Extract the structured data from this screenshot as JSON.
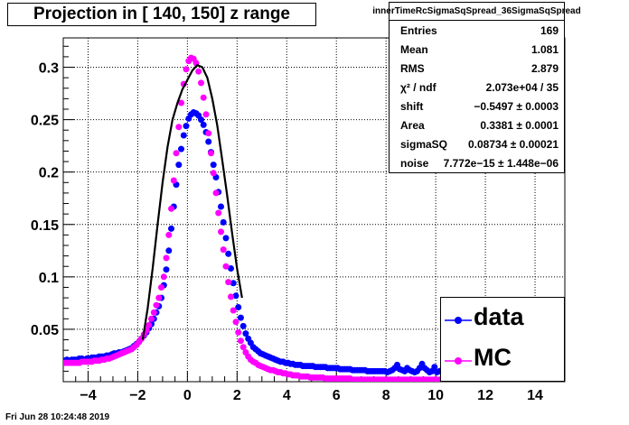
{
  "title": "Projection in [ 140, 150] z range",
  "timestamp": "Fri Jun 28 10:24:48 2019",
  "stats": {
    "name": "innerTimeRcSigmaSqSpread_36SigmaSqSpread",
    "rows": [
      {
        "label": "Entries",
        "value": "169"
      },
      {
        "label": "Mean",
        "value": "1.081"
      },
      {
        "label": "RMS",
        "value": "2.879"
      },
      {
        "label": "χ² / ndf",
        "value": "2.073e+04 / 35"
      },
      {
        "label": "shift",
        "value": "−0.5497 ± 0.0003"
      },
      {
        "label": "Area",
        "value": "0.3381 ± 0.0001"
      },
      {
        "label": "sigmaSQ",
        "value": "0.08734 ± 0.00021"
      },
      {
        "label": "noise",
        "value": "7.772e−15 ± 1.448e−06"
      }
    ]
  },
  "legend": [
    {
      "label": "data",
      "color": "#0000ff"
    },
    {
      "label": "MC",
      "color": "#ff00ff"
    }
  ],
  "chart_data": {
    "type": "scatter",
    "xlim": [
      -5,
      15.2
    ],
    "ylim": [
      0,
      0.328
    ],
    "xticks": [
      -4,
      -2,
      0,
      2,
      4,
      6,
      8,
      10,
      12,
      14
    ],
    "xtick_labels": [
      "−4",
      "−2",
      "0",
      "2",
      "4",
      "6",
      "8",
      "10",
      "12",
      "14"
    ],
    "yticks": [
      0.05,
      0.1,
      0.15,
      0.2,
      0.25,
      0.3
    ],
    "ytick_labels": [
      "0.05",
      "0.1",
      "0.15",
      "0.2",
      "0.25",
      "0.3"
    ],
    "grid": true,
    "legend_position": "bottom-right",
    "series": [
      {
        "name": "data",
        "color": "#0000ff",
        "marker": "circle",
        "x_start": -4.95,
        "x_step": 0.1,
        "values": [
          0.02,
          0.021,
          0.02,
          0.021,
          0.021,
          0.021,
          0.022,
          0.022,
          0.021,
          0.022,
          0.022,
          0.023,
          0.023,
          0.023,
          0.024,
          0.024,
          0.024,
          0.025,
          0.025,
          0.026,
          0.027,
          0.027,
          0.028,
          0.028,
          0.029,
          0.03,
          0.031,
          0.032,
          0.034,
          0.036,
          0.038,
          0.041,
          0.044,
          0.047,
          0.051,
          0.055,
          0.06,
          0.066,
          0.072,
          0.08,
          0.092,
          0.107,
          0.125,
          0.146,
          0.167,
          0.188,
          0.207,
          0.222,
          0.235,
          0.244,
          0.251,
          0.255,
          0.257,
          0.256,
          0.254,
          0.25,
          0.245,
          0.238,
          0.229,
          0.219,
          0.207,
          0.195,
          0.181,
          0.167,
          0.152,
          0.137,
          0.122,
          0.108,
          0.094,
          0.082,
          0.071,
          0.061,
          0.053,
          0.046,
          0.041,
          0.037,
          0.033,
          0.031,
          0.029,
          0.027,
          0.026,
          0.025,
          0.024,
          0.023,
          0.022,
          0.021,
          0.02,
          0.019,
          0.019,
          0.018,
          0.018,
          0.017,
          0.017,
          0.016,
          0.016,
          0.016,
          0.015,
          0.015,
          0.015,
          0.015,
          0.015,
          0.014,
          0.014,
          0.014,
          0.014,
          0.014,
          0.013,
          0.013,
          0.013,
          0.013,
          0.013,
          0.012,
          0.012,
          0.012,
          0.012,
          0.012,
          0.011,
          0.011,
          0.011,
          0.011,
          0.011,
          0.011,
          0.01,
          0.01,
          0.01,
          0.01,
          0.01,
          0.01,
          0.01,
          0.01,
          0.009,
          0.01,
          0.011,
          0.013,
          0.016,
          0.012,
          0.011,
          0.01,
          0.013,
          0.011,
          0.01,
          0.009,
          0.01,
          0.013,
          0.017,
          0.013,
          0.011,
          0.009,
          0.01,
          0.014,
          0.009,
          0.01,
          0.011,
          0.012,
          0.014,
          0.011,
          0.009,
          0.01,
          0.009,
          0.01,
          0.008,
          0.009,
          0.01,
          0.009,
          0.008,
          0.009
        ]
      },
      {
        "name": "MC",
        "color": "#ff00ff",
        "marker": "circle",
        "x_start": -4.95,
        "x_step": 0.1,
        "values": [
          0.018,
          0.018,
          0.018,
          0.018,
          0.018,
          0.018,
          0.018,
          0.019,
          0.019,
          0.019,
          0.019,
          0.019,
          0.02,
          0.02,
          0.02,
          0.021,
          0.021,
          0.022,
          0.022,
          0.023,
          0.024,
          0.025,
          0.026,
          0.027,
          0.028,
          0.029,
          0.03,
          0.031,
          0.033,
          0.035,
          0.038,
          0.041,
          0.045,
          0.049,
          0.054,
          0.06,
          0.066,
          0.073,
          0.08,
          0.09,
          0.1,
          0.118,
          0.14,
          0.165,
          0.192,
          0.218,
          0.243,
          0.266,
          0.284,
          0.298,
          0.306,
          0.309,
          0.308,
          0.304,
          0.296,
          0.285,
          0.271,
          0.255,
          0.237,
          0.218,
          0.199,
          0.18,
          0.161,
          0.143,
          0.126,
          0.11,
          0.095,
          0.081,
          0.068,
          0.057,
          0.047,
          0.039,
          0.033,
          0.028,
          0.024,
          0.021,
          0.019,
          0.018,
          0.016,
          0.015,
          0.014,
          0.013,
          0.012,
          0.011,
          0.011,
          0.01,
          0.009,
          0.009,
          0.008,
          0.008,
          0.007,
          0.007,
          0.006,
          0.006,
          0.006,
          0.005,
          0.005,
          0.005,
          0.005,
          0.004,
          0.004,
          0.004,
          0.004,
          0.004,
          0.004,
          0.003,
          0.003,
          0.003,
          0.003,
          0.003,
          0.003,
          0.003,
          0.003,
          0.003,
          0.003,
          0.003,
          0.002,
          0.002,
          0.002,
          0.002,
          0.002,
          0.002,
          0.002,
          0.002,
          0.002,
          0.002,
          0.002,
          0.002,
          0.002,
          0.002,
          0.002,
          0.002,
          0.002,
          0.002,
          0.002,
          0.002,
          0.002,
          0.002,
          0.002,
          0.002,
          0.002,
          0.002,
          0.002,
          0.002,
          0.002,
          0.002,
          0.002,
          0.002,
          0.002,
          0.002,
          0.002,
          0.002,
          0.002,
          0.002,
          0.002,
          0.002,
          0.002,
          0.002,
          0.002,
          0.002,
          0.002,
          0.002,
          0.002,
          0.002,
          0.002,
          0.002
        ]
      },
      {
        "name": "",
        "color": "#000000",
        "style": "line",
        "x": [
          -1.8,
          -1.6,
          -1.4,
          -1.2,
          -1.0,
          -0.8,
          -0.6,
          -0.4,
          -0.2,
          0.0,
          0.2,
          0.4,
          0.6,
          0.8,
          1.0,
          1.2,
          1.4,
          1.6,
          1.8,
          2.0,
          2.2
        ],
        "values": [
          0.04,
          0.07,
          0.108,
          0.15,
          0.19,
          0.224,
          0.25,
          0.266,
          0.279,
          0.288,
          0.297,
          0.302,
          0.3,
          0.29,
          0.27,
          0.245,
          0.212,
          0.178,
          0.142,
          0.108,
          0.08
        ]
      }
    ]
  }
}
